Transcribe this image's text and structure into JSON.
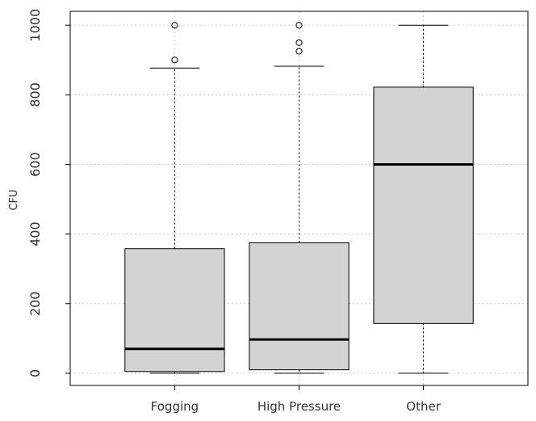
{
  "chart_data": {
    "type": "boxplot",
    "title": "",
    "xlabel": "",
    "ylabel": "CFU",
    "ylim": [
      -35,
      1040
    ],
    "yticks": [
      0,
      200,
      400,
      600,
      800,
      1000
    ],
    "grid": true,
    "categories": [
      "Fogging",
      "High Pressure",
      "Other"
    ],
    "boxes": [
      {
        "name": "Fogging",
        "min": 0,
        "q1": 5,
        "median": 70,
        "q3": 358,
        "max": 877,
        "outliers": [
          900,
          1000
        ]
      },
      {
        "name": "High Pressure",
        "min": 0,
        "q1": 10,
        "median": 97,
        "q3": 375,
        "max": 882,
        "outliers": [
          925,
          950,
          1000
        ]
      },
      {
        "name": "Other",
        "min": 0,
        "q1": 143,
        "median": 600,
        "q3": 822,
        "max": 1000,
        "outliers": []
      }
    ],
    "colors": {
      "box_fill": "#d3d3d3",
      "stroke": "#000000",
      "grid": "#cccccc",
      "text": "#333333"
    }
  }
}
